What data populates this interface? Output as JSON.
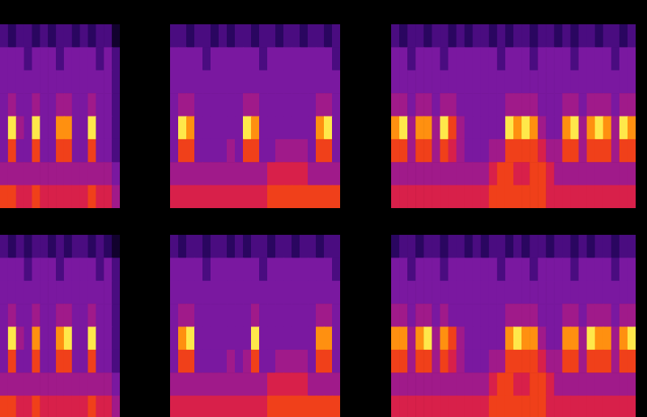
{
  "chart_data": [
    {
      "type": "heatmap",
      "tick_labels": false,
      "color_range": [
        0,
        9
      ],
      "cells": [
        [
          3,
          2,
          3,
          3,
          2,
          3,
          2,
          3,
          3,
          2,
          3,
          2,
          3,
          3,
          1
        ],
        [
          4,
          4,
          4,
          3,
          4,
          4,
          4,
          3,
          4,
          4,
          4,
          4,
          3,
          4,
          3
        ],
        [
          4,
          4,
          4,
          4,
          4,
          4,
          4,
          4,
          4,
          4,
          4,
          4,
          4,
          4,
          3
        ],
        [
          4,
          5,
          4,
          4,
          5,
          4,
          4,
          5,
          5,
          4,
          4,
          5,
          4,
          4,
          3
        ],
        [
          4,
          9,
          5,
          4,
          9,
          4,
          4,
          8,
          8,
          4,
          4,
          9,
          4,
          4,
          3
        ],
        [
          4,
          7,
          4,
          4,
          7,
          4,
          4,
          7,
          7,
          4,
          4,
          7,
          4,
          4,
          3
        ],
        [
          5,
          5,
          5,
          5,
          5,
          5,
          5,
          5,
          5,
          5,
          5,
          5,
          5,
          5,
          4
        ],
        [
          7,
          7,
          6,
          6,
          7,
          6,
          6,
          6,
          6,
          6,
          6,
          7,
          6,
          6,
          5
        ]
      ]
    },
    {
      "type": "heatmap",
      "tick_labels": false,
      "color_range": [
        0,
        9
      ],
      "cells": [
        [
          3,
          3,
          2,
          3,
          3,
          2,
          3,
          2,
          3,
          3,
          2,
          3,
          3,
          2,
          3,
          3,
          2,
          3,
          3,
          2,
          3
        ],
        [
          4,
          4,
          4,
          4,
          3,
          4,
          4,
          4,
          4,
          4,
          4,
          3,
          4,
          4,
          4,
          4,
          4,
          4,
          4,
          4,
          3
        ],
        [
          4,
          4,
          4,
          4,
          4,
          4,
          4,
          4,
          4,
          4,
          4,
          4,
          4,
          4,
          4,
          4,
          4,
          4,
          4,
          4,
          4
        ],
        [
          4,
          5,
          5,
          4,
          4,
          4,
          4,
          4,
          4,
          5,
          5,
          4,
          4,
          4,
          4,
          4,
          4,
          4,
          5,
          5,
          4
        ],
        [
          4,
          9,
          8,
          4,
          4,
          4,
          4,
          4,
          4,
          9,
          8,
          4,
          4,
          4,
          4,
          4,
          4,
          4,
          8,
          9,
          4
        ],
        [
          4,
          7,
          7,
          4,
          4,
          4,
          4,
          5,
          4,
          7,
          7,
          4,
          4,
          5,
          5,
          5,
          5,
          4,
          7,
          7,
          4
        ],
        [
          5,
          5,
          5,
          5,
          5,
          5,
          5,
          5,
          5,
          5,
          5,
          5,
          6,
          6,
          6,
          6,
          6,
          5,
          5,
          5,
          5
        ],
        [
          6,
          6,
          6,
          6,
          6,
          6,
          6,
          6,
          6,
          6,
          6,
          6,
          7,
          7,
          7,
          7,
          7,
          7,
          7,
          7,
          7
        ]
      ]
    },
    {
      "type": "heatmap",
      "tick_labels": false,
      "color_range": [
        0,
        9
      ],
      "cells": [
        [
          3,
          2,
          3,
          3,
          2,
          3,
          3,
          2,
          3,
          2,
          3,
          3,
          2,
          3,
          2,
          3,
          3,
          2,
          3,
          3,
          2,
          3,
          2,
          3,
          3,
          2,
          3,
          3,
          2,
          3
        ],
        [
          4,
          4,
          3,
          4,
          4,
          4,
          3,
          4,
          4,
          4,
          4,
          4,
          4,
          3,
          4,
          4,
          4,
          3,
          4,
          4,
          4,
          4,
          3,
          4,
          4,
          4,
          4,
          3,
          4,
          4
        ],
        [
          4,
          4,
          4,
          4,
          4,
          4,
          4,
          4,
          4,
          4,
          4,
          4,
          4,
          4,
          4,
          4,
          4,
          4,
          4,
          4,
          4,
          4,
          4,
          4,
          4,
          4,
          4,
          4,
          4,
          4
        ],
        [
          5,
          5,
          4,
          5,
          5,
          4,
          5,
          5,
          4,
          4,
          4,
          4,
          4,
          4,
          5,
          5,
          5,
          5,
          4,
          4,
          4,
          5,
          5,
          4,
          5,
          5,
          5,
          4,
          5,
          5
        ],
        [
          8,
          9,
          5,
          8,
          8,
          5,
          9,
          7,
          5,
          4,
          4,
          4,
          4,
          4,
          9,
          8,
          9,
          8,
          5,
          4,
          4,
          8,
          9,
          5,
          8,
          9,
          8,
          5,
          9,
          8
        ],
        [
          7,
          7,
          5,
          7,
          7,
          5,
          7,
          6,
          5,
          4,
          4,
          4,
          5,
          5,
          7,
          7,
          7,
          7,
          6,
          5,
          5,
          7,
          7,
          5,
          7,
          7,
          7,
          5,
          7,
          7
        ],
        [
          5,
          5,
          5,
          5,
          5,
          5,
          5,
          5,
          5,
          5,
          5,
          5,
          6,
          7,
          7,
          6,
          6,
          7,
          7,
          6,
          5,
          5,
          5,
          5,
          5,
          5,
          5,
          5,
          5,
          5
        ],
        [
          6,
          6,
          6,
          6,
          6,
          6,
          6,
          6,
          6,
          6,
          6,
          6,
          7,
          7,
          7,
          7,
          7,
          7,
          7,
          6,
          6,
          6,
          6,
          6,
          6,
          6,
          6,
          6,
          6,
          6
        ]
      ]
    },
    {
      "type": "heatmap",
      "tick_labels": false,
      "color_range": [
        0,
        9
      ],
      "cells": [
        [
          3,
          2,
          3,
          2,
          3,
          3,
          2,
          3,
          2,
          3,
          3,
          2,
          3,
          2,
          1
        ],
        [
          4,
          4,
          4,
          3,
          4,
          4,
          4,
          3,
          4,
          4,
          4,
          4,
          3,
          4,
          3
        ],
        [
          4,
          4,
          4,
          4,
          4,
          4,
          4,
          4,
          4,
          4,
          4,
          4,
          4,
          4,
          3
        ],
        [
          4,
          5,
          4,
          4,
          5,
          4,
          4,
          5,
          5,
          4,
          4,
          5,
          4,
          4,
          3
        ],
        [
          4,
          9,
          5,
          4,
          8,
          4,
          4,
          8,
          9,
          4,
          4,
          9,
          4,
          4,
          3
        ],
        [
          4,
          7,
          4,
          4,
          7,
          4,
          4,
          7,
          7,
          4,
          4,
          7,
          4,
          4,
          3
        ],
        [
          5,
          5,
          5,
          5,
          5,
          5,
          5,
          5,
          5,
          5,
          5,
          5,
          5,
          5,
          4
        ],
        [
          7,
          7,
          6,
          6,
          7,
          6,
          6,
          6,
          6,
          6,
          6,
          7,
          6,
          6,
          5
        ]
      ]
    },
    {
      "type": "heatmap",
      "tick_labels": false,
      "color_range": [
        0,
        9
      ],
      "cells": [
        [
          3,
          2,
          3,
          3,
          2,
          3,
          3,
          2,
          3,
          2,
          3,
          3,
          2,
          3,
          3,
          2,
          3,
          3,
          2,
          3,
          3
        ],
        [
          4,
          4,
          4,
          4,
          3,
          4,
          4,
          4,
          4,
          4,
          4,
          3,
          4,
          4,
          4,
          4,
          4,
          4,
          4,
          4,
          3
        ],
        [
          4,
          4,
          4,
          4,
          4,
          4,
          4,
          4,
          4,
          4,
          4,
          4,
          4,
          4,
          4,
          4,
          4,
          4,
          4,
          4,
          4
        ],
        [
          4,
          5,
          5,
          4,
          4,
          4,
          4,
          4,
          4,
          4,
          5,
          4,
          4,
          4,
          4,
          4,
          4,
          4,
          5,
          5,
          4
        ],
        [
          4,
          8,
          9,
          4,
          4,
          4,
          4,
          4,
          4,
          4,
          9,
          4,
          4,
          4,
          4,
          4,
          4,
          4,
          8,
          8,
          4
        ],
        [
          4,
          7,
          7,
          4,
          4,
          4,
          4,
          5,
          4,
          5,
          7,
          4,
          4,
          5,
          5,
          5,
          5,
          4,
          7,
          7,
          4
        ],
        [
          5,
          5,
          5,
          5,
          5,
          5,
          5,
          5,
          5,
          5,
          5,
          5,
          6,
          6,
          6,
          6,
          6,
          5,
          5,
          5,
          5
        ],
        [
          6,
          6,
          6,
          6,
          6,
          6,
          6,
          6,
          6,
          6,
          6,
          6,
          7,
          7,
          7,
          7,
          7,
          7,
          7,
          7,
          7
        ]
      ]
    },
    {
      "type": "heatmap",
      "tick_labels": false,
      "color_range": [
        0,
        9
      ],
      "cells": [
        [
          2,
          3,
          3,
          2,
          3,
          3,
          2,
          3,
          3,
          2,
          3,
          2,
          3,
          3,
          2,
          3,
          2,
          3,
          3,
          2,
          3,
          3,
          2,
          3,
          2,
          3,
          3,
          2,
          3,
          3
        ],
        [
          4,
          4,
          3,
          4,
          4,
          4,
          3,
          4,
          4,
          4,
          4,
          4,
          4,
          3,
          4,
          4,
          4,
          3,
          4,
          4,
          4,
          4,
          3,
          4,
          4,
          4,
          4,
          3,
          4,
          4
        ],
        [
          4,
          4,
          4,
          4,
          4,
          4,
          4,
          4,
          4,
          4,
          4,
          4,
          4,
          4,
          4,
          4,
          4,
          4,
          4,
          4,
          4,
          4,
          4,
          4,
          4,
          4,
          4,
          4,
          4,
          4
        ],
        [
          5,
          5,
          4,
          5,
          5,
          4,
          5,
          4,
          4,
          4,
          4,
          4,
          4,
          4,
          5,
          5,
          5,
          5,
          4,
          4,
          4,
          5,
          5,
          4,
          5,
          5,
          5,
          4,
          5,
          5
        ],
        [
          8,
          8,
          5,
          8,
          9,
          5,
          8,
          7,
          5,
          4,
          4,
          4,
          4,
          4,
          8,
          9,
          8,
          8,
          5,
          4,
          4,
          8,
          8,
          5,
          9,
          8,
          8,
          5,
          8,
          9
        ],
        [
          7,
          7,
          5,
          7,
          7,
          5,
          7,
          6,
          5,
          4,
          4,
          4,
          5,
          5,
          7,
          7,
          7,
          7,
          6,
          5,
          5,
          7,
          7,
          5,
          7,
          7,
          7,
          5,
          7,
          7
        ],
        [
          5,
          5,
          5,
          5,
          5,
          5,
          5,
          5,
          5,
          5,
          5,
          5,
          6,
          7,
          7,
          6,
          6,
          7,
          7,
          6,
          5,
          5,
          5,
          5,
          5,
          5,
          5,
          5,
          5,
          5
        ],
        [
          6,
          6,
          6,
          6,
          6,
          6,
          6,
          6,
          6,
          6,
          6,
          6,
          7,
          7,
          7,
          7,
          7,
          7,
          7,
          6,
          6,
          6,
          6,
          6,
          6,
          6,
          6,
          6,
          6,
          6
        ]
      ]
    }
  ]
}
